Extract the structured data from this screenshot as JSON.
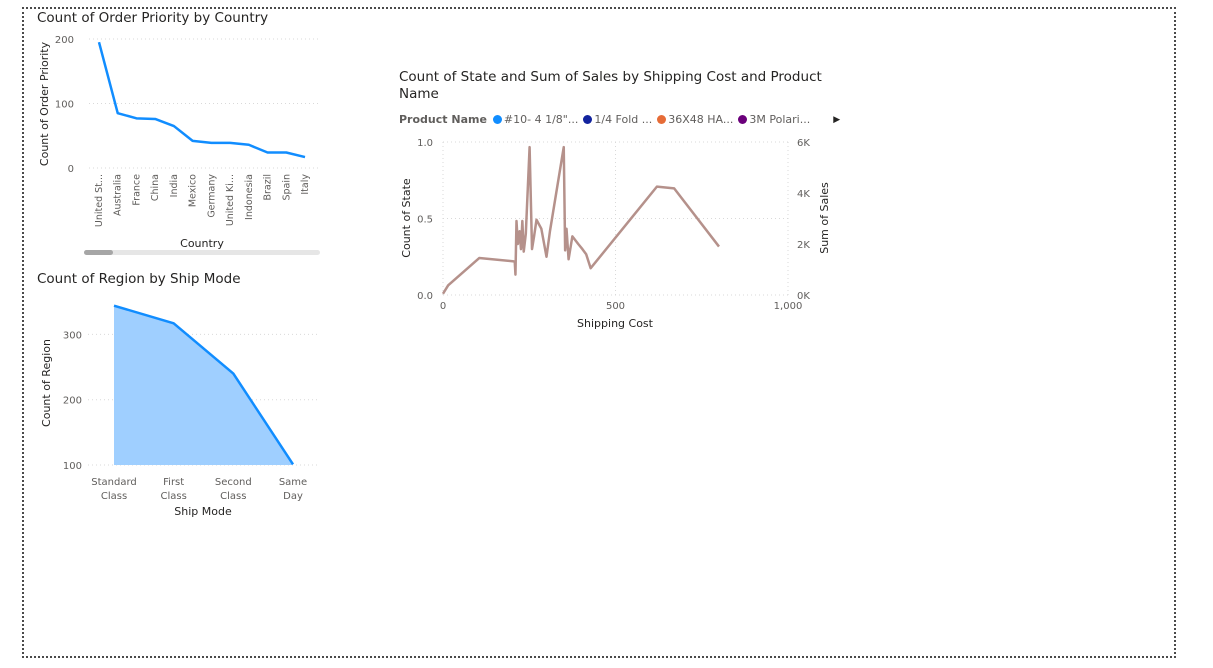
{
  "charts": {
    "order_priority": {
      "title": "Count of Order Priority by Country",
      "xlabel": "Country",
      "ylabel": "Count of Order Priority"
    },
    "region": {
      "title": "Count of Region by Ship Mode",
      "xlabel": "Ship Mode",
      "ylabel": "Count of Region"
    },
    "state_sales": {
      "title_line1": "Count of State and Sum of Sales by Shipping Cost and Product",
      "title_line2": "Name",
      "xlabel": "Shipping Cost",
      "ylabel_left": "Count of State",
      "ylabel_right": "Sum of Sales",
      "legend": {
        "label": "Product Name",
        "items": [
          {
            "name": "#10- 4 1/8\"...",
            "color": "#118dff"
          },
          {
            "name": "1/4 Fold ...",
            "color": "#12239e"
          },
          {
            "name": "36X48 HA...",
            "color": "#e66c37"
          },
          {
            "name": "3M Polari...",
            "color": "#6b007b"
          }
        ],
        "more_icon": "chevron-right-icon"
      }
    }
  },
  "chart_data": [
    {
      "type": "line",
      "title": "Count of Order Priority by Country",
      "xlabel": "Country",
      "ylabel": "Count of Order Priority",
      "categories": [
        "United St...",
        "Australia",
        "France",
        "China",
        "India",
        "Mexico",
        "Germany",
        "United Ki...",
        "Indonesia",
        "Brazil",
        "Spain",
        "Italy"
      ],
      "values": [
        195,
        85,
        77,
        76,
        65,
        42,
        39,
        39,
        36,
        24,
        24,
        17
      ],
      "yticks": [
        0,
        100,
        200
      ],
      "ylim": [
        0,
        200
      ],
      "grid": true,
      "color": "#118dff"
    },
    {
      "type": "area",
      "title": "Count of Region by Ship Mode",
      "xlabel": "Ship Mode",
      "ylabel": "Count of Region",
      "categories": [
        [
          "Standard",
          "Class"
        ],
        [
          "First",
          "Class"
        ],
        [
          "Second",
          "Class"
        ],
        [
          "Same",
          "Day"
        ]
      ],
      "values": [
        344,
        317,
        240,
        101
      ],
      "yticks": [
        100,
        200,
        300
      ],
      "ylim": [
        100,
        345
      ],
      "grid": true,
      "color": "#118dff",
      "fill": "#9fcfff"
    },
    {
      "type": "line",
      "title": "Count of State and Sum of Sales by Shipping Cost and Product Name",
      "xlabel": "Shipping Cost",
      "ylabel": "Count of State",
      "y2label": "Sum of Sales",
      "xlim": [
        0,
        1000
      ],
      "ylim": [
        0,
        1
      ],
      "y2lim": [
        0,
        6000
      ],
      "xticks": [
        0,
        500,
        1000
      ],
      "xtick_labels": [
        "0",
        "500",
        "1,000"
      ],
      "yticks": [
        0,
        0.5,
        1
      ],
      "ytick_labels": [
        "0.0",
        "0.5",
        "1.0"
      ],
      "y2ticks": [
        0,
        2000,
        4000,
        6000
      ],
      "y2tick_labels": [
        "0K",
        "2K",
        "4K",
        "6K"
      ],
      "series": [
        {
          "axis": "y2",
          "color": "#b5918b",
          "x": [
            0,
            15,
            105,
            205,
            208,
            210,
            213,
            217,
            222,
            226,
            230,
            234,
            240,
            251,
            258,
            264,
            271,
            285,
            300,
            310,
            350,
            354,
            358,
            364,
            375,
            392,
            404,
            415,
            428,
            620,
            670,
            800
          ],
          "y": [
            50,
            380,
            1450,
            1320,
            1300,
            800,
            2900,
            2000,
            2500,
            1800,
            2900,
            1700,
            2400,
            5800,
            1800,
            2300,
            2950,
            2600,
            1500,
            2500,
            5800,
            1750,
            2600,
            1400,
            2300,
            2000,
            1800,
            1600,
            1050,
            4250,
            4180,
            1900
          ]
        }
      ]
    }
  ]
}
